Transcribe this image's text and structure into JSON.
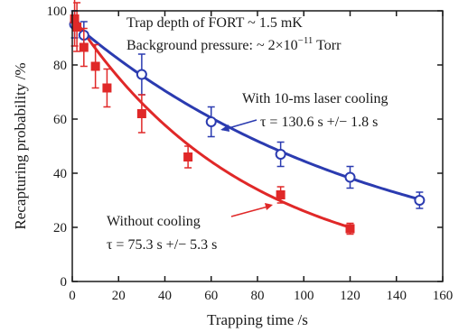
{
  "chart_data": {
    "type": "scatter",
    "title": "",
    "xlabel": "Trapping time /s",
    "ylabel": "Recapturing probability /%",
    "xlim": [
      0,
      160
    ],
    "ylim": [
      0,
      100
    ],
    "xticks": [
      0,
      20,
      40,
      60,
      80,
      100,
      120,
      140,
      160
    ],
    "yticks": [
      0,
      20,
      40,
      60,
      80,
      100
    ],
    "grid": false,
    "legend": "none",
    "notes": [
      "Trap depth of FORT ~ 1.5 mK",
      "Background pressure: ~ 2×10",
      "−11",
      " Torr"
    ],
    "series": [
      {
        "label_lines": [
          "With 10-ms laser cooling",
          "τ = 130.6 s +/− 1.8 s"
        ],
        "color": "#2b3bb0",
        "marker": "open-circle",
        "tau": 130.6,
        "fit_xrange": [
          0,
          150
        ],
        "x": [
          1,
          5,
          30,
          60,
          90,
          120,
          150
        ],
        "y": [
          95,
          91,
          76.5,
          59,
          47,
          38.5,
          30
        ],
        "err": [
          5,
          5,
          7.5,
          5.5,
          4.5,
          4,
          3
        ]
      },
      {
        "label_lines": [
          "Without cooling",
          "τ = 75.3 s +/− 5.3 s"
        ],
        "color": "#e02828",
        "marker": "filled-square",
        "tau": 75.3,
        "fit_xrange": [
          0,
          120
        ],
        "x": [
          1,
          2,
          5,
          10,
          15,
          30,
          50,
          90,
          120
        ],
        "y": [
          97,
          94,
          86.5,
          79.5,
          71.5,
          62,
          46,
          32,
          19.5
        ],
        "err": [
          10,
          9,
          7,
          8,
          7,
          7,
          4,
          3,
          2
        ]
      }
    ]
  }
}
